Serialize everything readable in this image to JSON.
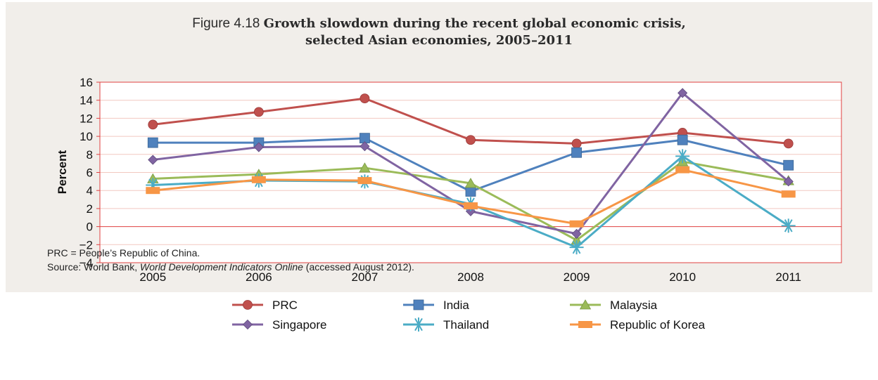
{
  "figure": {
    "prefix": "Figure 4.18",
    "title_line1": "Growth slowdown during the recent global economic crisis,",
    "title_line2": "selected Asian economies, 2005–2011"
  },
  "chart_data": {
    "type": "line",
    "x": [
      "2005",
      "2006",
      "2007",
      "2008",
      "2009",
      "2010",
      "2011"
    ],
    "ylabel": "Percent",
    "xlabel": "",
    "ylim": [
      -4,
      16
    ],
    "yticks": [
      "16",
      "14",
      "12",
      "10",
      "8",
      "6",
      "4",
      "2",
      "0",
      "−2",
      "−4"
    ],
    "ytick_values": [
      16,
      14,
      12,
      10,
      8,
      6,
      4,
      2,
      0,
      -2,
      -4
    ],
    "grid": true,
    "legend_position": "bottom",
    "series": [
      {
        "name": "PRC",
        "color": "#c0504d",
        "marker": "circle",
        "values": [
          11.3,
          12.7,
          14.2,
          9.6,
          9.2,
          10.4,
          9.2
        ]
      },
      {
        "name": "India",
        "color": "#4f81bd",
        "marker": "square",
        "values": [
          9.3,
          9.3,
          9.8,
          3.9,
          8.2,
          9.6,
          6.8
        ]
      },
      {
        "name": "Malaysia",
        "color": "#9bbb59",
        "marker": "triangle",
        "values": [
          5.3,
          5.8,
          6.5,
          4.8,
          -1.5,
          7.2,
          5.1
        ]
      },
      {
        "name": "Singapore",
        "color": "#8064a2",
        "marker": "diamond",
        "values": [
          7.4,
          8.8,
          8.9,
          1.7,
          -0.8,
          14.8,
          5.0
        ]
      },
      {
        "name": "Thailand",
        "color": "#4bacc6",
        "marker": "star",
        "values": [
          4.6,
          5.1,
          5.0,
          2.5,
          -2.3,
          7.8,
          0.1
        ]
      },
      {
        "name": "Republic of Korea",
        "color": "#f79646",
        "marker": "bar",
        "values": [
          4.0,
          5.2,
          5.1,
          2.3,
          0.3,
          6.3,
          3.6
        ]
      }
    ]
  },
  "notes": {
    "abbrev": "PRC = People’s Republic of China.",
    "source_prefix": "Source: World Bank, ",
    "source_italic": "World Development Indicators Online",
    "source_suffix": " (accessed August 2012)."
  }
}
